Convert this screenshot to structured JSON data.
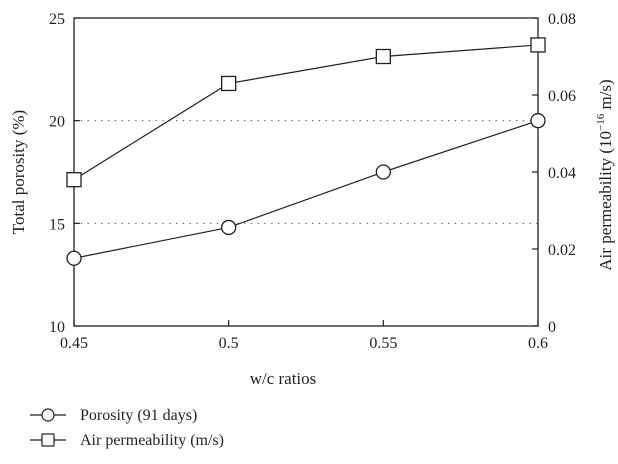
{
  "chart_data": {
    "type": "line",
    "xlabel": "w/c ratios",
    "ylabel_left": "Total porosity (%)",
    "ylabel_right": {
      "prefix": "Air permeability (10",
      "sup": "−16",
      "suffix": " m/s)"
    },
    "x": [
      0.45,
      0.5,
      0.55,
      0.6
    ],
    "x_ticks": [
      "0.45",
      "0.5",
      "0.55",
      "0.6"
    ],
    "xlim": [
      0.45,
      0.6
    ],
    "ylim_left": [
      10,
      25
    ],
    "y_ticks_left": [
      "10",
      "15",
      "20",
      "25"
    ],
    "ylim_right": [
      0,
      0.08
    ],
    "y_ticks_right": [
      "0",
      "0.02",
      "0.04",
      "0.06",
      "0.08"
    ],
    "grid": "dotted horizontal lines at 15 and 20 (left axis)",
    "legend_position": "bottom-left, below plot",
    "series": [
      {
        "name": "Porosity (91 days)",
        "axis": "left",
        "marker": "circle",
        "values": [
          13.3,
          14.8,
          17.5,
          20.0
        ]
      },
      {
        "name": "Air permeability (m/s)",
        "axis": "right",
        "marker": "square",
        "values": [
          0.038,
          0.063,
          0.07,
          0.073
        ]
      }
    ],
    "line_color": "#231f20"
  }
}
